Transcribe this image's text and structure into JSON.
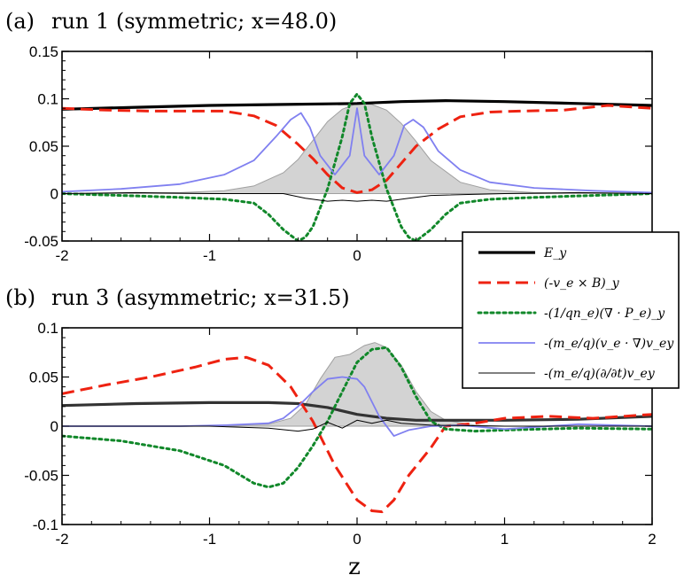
{
  "chart_data": [
    {
      "type": "line",
      "panel_label": "(a)",
      "title": "run 1 (symmetric; x=48.0)",
      "xlabel": "",
      "ylabel": "",
      "xlim": [
        -2,
        2
      ],
      "ylim": [
        -0.05,
        0.15
      ],
      "x_ticks": [
        -2,
        -1,
        0,
        1,
        2
      ],
      "x_tick_labels": [
        "-2",
        "-1",
        "0",
        "1",
        "2"
      ],
      "y_ticks": [
        -0.05,
        0,
        0.05,
        0.1,
        0.15
      ],
      "y_tick_labels": [
        "-0.05",
        "0",
        "0.05",
        "0.1",
        "0.15"
      ],
      "grid": false,
      "shaded_profile": {
        "name": "density (shaded)",
        "color": "#d3d3d3",
        "x": [
          -2.0,
          -1.6,
          -1.2,
          -0.9,
          -0.7,
          -0.5,
          -0.4,
          -0.3,
          -0.2,
          -0.1,
          0.0,
          0.1,
          0.2,
          0.3,
          0.4,
          0.5,
          0.7,
          0.9,
          1.2,
          1.6,
          2.0
        ],
        "y": [
          0.0,
          0.0,
          0.001,
          0.003,
          0.008,
          0.022,
          0.036,
          0.056,
          0.076,
          0.089,
          0.095,
          0.094,
          0.088,
          0.074,
          0.055,
          0.035,
          0.012,
          0.004,
          0.001,
          0.0,
          0.0
        ]
      },
      "series": [
        {
          "name": "E_y",
          "color": "#000000",
          "dash": "",
          "width": 3.2,
          "x": [
            -2.0,
            -1.5,
            -1.0,
            -0.5,
            0.0,
            0.3,
            0.6,
            1.0,
            1.5,
            2.0
          ],
          "y": [
            0.089,
            0.091,
            0.093,
            0.094,
            0.095,
            0.097,
            0.098,
            0.097,
            0.095,
            0.093
          ]
        },
        {
          "name": "(-v_e x B)_y",
          "color": "#ee2211",
          "dash": "14 7",
          "width": 3,
          "x": [
            -2.0,
            -1.7,
            -1.4,
            -1.1,
            -0.9,
            -0.7,
            -0.55,
            -0.4,
            -0.3,
            -0.2,
            -0.1,
            0.0,
            0.1,
            0.2,
            0.3,
            0.4,
            0.55,
            0.7,
            0.9,
            1.1,
            1.4,
            1.7,
            2.0
          ],
          "y": [
            0.09,
            0.088,
            0.087,
            0.087,
            0.087,
            0.082,
            0.072,
            0.052,
            0.037,
            0.02,
            0.006,
            0.001,
            0.004,
            0.014,
            0.032,
            0.05,
            0.068,
            0.081,
            0.086,
            0.087,
            0.088,
            0.093,
            0.09
          ]
        },
        {
          "name": "-(1/qn_e)(div P_e)_y",
          "color": "#11882a",
          "dash": "3 4",
          "width": 3,
          "x": [
            -2.0,
            -1.6,
            -1.2,
            -0.9,
            -0.7,
            -0.6,
            -0.5,
            -0.4,
            -0.35,
            -0.3,
            -0.2,
            -0.1,
            -0.05,
            0.0,
            0.05,
            0.1,
            0.2,
            0.3,
            0.35,
            0.4,
            0.5,
            0.6,
            0.7,
            0.9,
            1.2,
            1.6,
            2.0
          ],
          "y": [
            0.0,
            -0.002,
            -0.004,
            -0.006,
            -0.01,
            -0.022,
            -0.038,
            -0.05,
            -0.046,
            -0.035,
            0.005,
            0.06,
            0.095,
            0.105,
            0.095,
            0.06,
            0.005,
            -0.035,
            -0.046,
            -0.05,
            -0.038,
            -0.022,
            -0.01,
            -0.006,
            -0.004,
            -0.002,
            0.0
          ]
        },
        {
          "name": "-(m_e/q)(v_e . grad)v_ey",
          "color": "#8080f0",
          "dash": "",
          "width": 1.8,
          "x": [
            -2.0,
            -1.6,
            -1.2,
            -0.9,
            -0.7,
            -0.55,
            -0.45,
            -0.38,
            -0.32,
            -0.25,
            -0.15,
            -0.05,
            0.0,
            0.05,
            0.15,
            0.25,
            0.32,
            0.38,
            0.45,
            0.55,
            0.7,
            0.9,
            1.2,
            1.6,
            2.0
          ],
          "y": [
            0.002,
            0.005,
            0.01,
            0.02,
            0.035,
            0.06,
            0.078,
            0.085,
            0.07,
            0.04,
            0.02,
            0.04,
            0.09,
            0.04,
            0.02,
            0.04,
            0.072,
            0.078,
            0.07,
            0.045,
            0.025,
            0.012,
            0.006,
            0.003,
            0.001
          ]
        },
        {
          "name": "-(m_e/q)(d/dt)v_ey",
          "color": "#000000",
          "dash": "",
          "width": 1,
          "x": [
            -2.0,
            -1.5,
            -1.0,
            -0.5,
            -0.35,
            -0.2,
            -0.1,
            0.0,
            0.1,
            0.2,
            0.35,
            0.5,
            1.0,
            1.5,
            2.0
          ],
          "y": [
            0.0,
            0.001,
            0.0,
            0.0,
            -0.005,
            -0.008,
            -0.007,
            -0.008,
            -0.007,
            -0.008,
            -0.005,
            -0.002,
            0.0,
            0.001,
            0.0
          ]
        }
      ]
    },
    {
      "type": "line",
      "panel_label": "(b)",
      "title": "run 3 (asymmetric; x=31.5)",
      "xlabel": "z",
      "ylabel": "",
      "xlim": [
        -2,
        2
      ],
      "ylim": [
        -0.1,
        0.1
      ],
      "x_ticks": [
        -2,
        -1,
        0,
        1,
        2
      ],
      "x_tick_labels": [
        "-2",
        "-1",
        "0",
        "1",
        "2"
      ],
      "y_ticks": [
        -0.1,
        -0.05,
        0,
        0.05,
        0.1
      ],
      "y_tick_labels": [
        "-0.1",
        "-0.05",
        "0",
        "0.05",
        "0.1"
      ],
      "grid": false,
      "shaded_profile": {
        "name": "density (shaded)",
        "color": "#d3d3d3",
        "x": [
          -2.0,
          -1.0,
          -0.6,
          -0.45,
          -0.35,
          -0.25,
          -0.15,
          -0.05,
          0.05,
          0.12,
          0.2,
          0.3,
          0.4,
          0.5,
          0.6,
          0.8,
          1.0,
          2.0
        ],
        "y": [
          0.0,
          0.0,
          0.002,
          0.008,
          0.022,
          0.048,
          0.07,
          0.073,
          0.082,
          0.085,
          0.08,
          0.062,
          0.035,
          0.015,
          0.006,
          0.001,
          0.0,
          0.0
        ]
      },
      "series": [
        {
          "name": "E_y",
          "color": "#333333",
          "dash": "",
          "width": 3.2,
          "x": [
            -2.0,
            -1.5,
            -1.0,
            -0.6,
            -0.4,
            -0.2,
            0.0,
            0.2,
            0.4,
            0.6,
            1.0,
            1.5,
            2.0
          ],
          "y": [
            0.021,
            0.023,
            0.024,
            0.024,
            0.023,
            0.019,
            0.012,
            0.008,
            0.006,
            0.006,
            0.006,
            0.007,
            0.01
          ]
        },
        {
          "name": "(-v_e x B)_y",
          "color": "#ee2211",
          "dash": "14 7",
          "width": 3,
          "x": [
            -2.0,
            -1.7,
            -1.4,
            -1.1,
            -0.9,
            -0.75,
            -0.6,
            -0.45,
            -0.3,
            -0.15,
            0.0,
            0.1,
            0.17,
            0.25,
            0.35,
            0.5,
            0.6,
            0.8,
            1.0,
            1.3,
            1.6,
            2.0
          ],
          "y": [
            0.033,
            0.042,
            0.05,
            0.06,
            0.068,
            0.07,
            0.062,
            0.04,
            0.005,
            -0.04,
            -0.075,
            -0.086,
            -0.087,
            -0.075,
            -0.05,
            -0.022,
            0.0,
            0.003,
            0.008,
            0.01,
            0.008,
            0.012
          ]
        },
        {
          "name": "-(1/qn_e)(div P_e)_y",
          "color": "#11882a",
          "dash": "3 4",
          "width": 3,
          "x": [
            -2.0,
            -1.6,
            -1.2,
            -0.9,
            -0.7,
            -0.6,
            -0.5,
            -0.4,
            -0.3,
            -0.2,
            -0.1,
            0.0,
            0.1,
            0.2,
            0.3,
            0.4,
            0.5,
            0.6,
            0.8,
            1.0,
            1.5,
            2.0
          ],
          "y": [
            -0.01,
            -0.015,
            -0.025,
            -0.04,
            -0.058,
            -0.062,
            -0.058,
            -0.042,
            -0.02,
            0.005,
            0.035,
            0.065,
            0.078,
            0.08,
            0.06,
            0.03,
            0.005,
            -0.003,
            -0.005,
            -0.004,
            -0.002,
            -0.003
          ]
        },
        {
          "name": "-(m_e/q)(v_e . grad)v_ey",
          "color": "#8080f0",
          "dash": "",
          "width": 1.8,
          "x": [
            -2.0,
            -1.6,
            -1.2,
            -0.9,
            -0.6,
            -0.5,
            -0.4,
            -0.3,
            -0.2,
            -0.1,
            0.0,
            0.05,
            0.15,
            0.25,
            0.35,
            0.5,
            0.7,
            1.0,
            1.5,
            2.0
          ],
          "y": [
            0.0,
            0.0,
            0.0,
            0.001,
            0.003,
            0.008,
            0.02,
            0.035,
            0.048,
            0.05,
            0.048,
            0.04,
            0.01,
            -0.01,
            -0.004,
            0.0,
            0.001,
            -0.003,
            0.002,
            0.0
          ]
        },
        {
          "name": "-(m_e/q)(d/dt)v_ey",
          "color": "#000000",
          "dash": "",
          "width": 1,
          "x": [
            -2.0,
            -1.5,
            -1.0,
            -0.6,
            -0.4,
            -0.3,
            -0.2,
            -0.1,
            0.0,
            0.1,
            0.2,
            0.3,
            0.5,
            1.0,
            1.5,
            2.0
          ],
          "y": [
            0.0,
            0.0,
            0.0,
            -0.002,
            -0.005,
            -0.003,
            0.004,
            -0.002,
            0.006,
            0.003,
            0.006,
            0.003,
            0.001,
            0.0,
            0.0,
            0.0
          ]
        }
      ]
    }
  ],
  "legend": {
    "placement": "right, between panels",
    "entries": [
      {
        "label": "E_y",
        "color": "#000000",
        "dash": "",
        "width": 3.2
      },
      {
        "label": "(-v_e × B)_y",
        "color": "#ee2211",
        "dash": "14 7",
        "width": 3
      },
      {
        "label": "-(1/qn_e)(∇ · P_e)_y",
        "color": "#11882a",
        "dash": "3 4",
        "width": 3
      },
      {
        "label": "-(m_e/q)(v_e · ∇)v_ey",
        "color": "#8080f0",
        "dash": "",
        "width": 1.8
      },
      {
        "label": "-(m_e/q)(∂/∂t)v_ey",
        "color": "#000000",
        "dash": "",
        "width": 1
      }
    ]
  }
}
